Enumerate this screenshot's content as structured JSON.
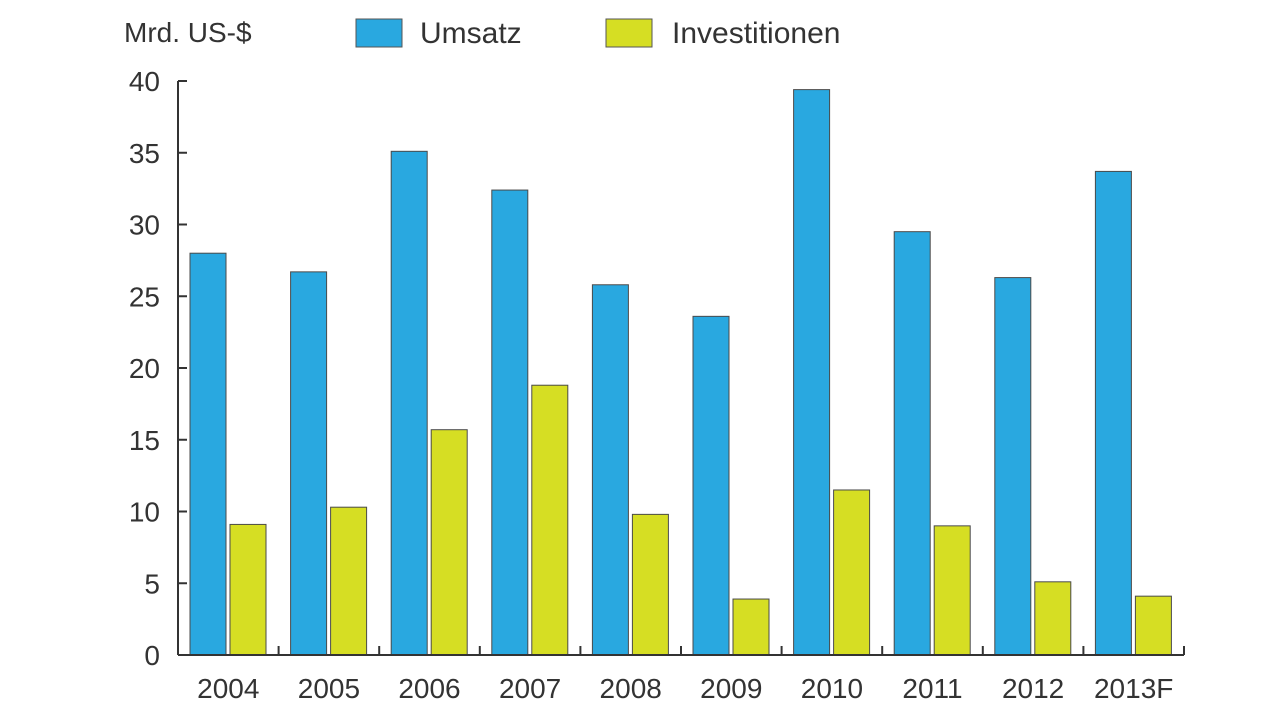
{
  "chart_data": {
    "type": "bar",
    "ylabel": "Mrd. US-$",
    "xlabel": "",
    "title": "",
    "categories": [
      "2004",
      "2005",
      "2006",
      "2007",
      "2008",
      "2009",
      "2010",
      "2011",
      "2012",
      "2013F"
    ],
    "series": [
      {
        "name": "Umsatz",
        "color": "#29a8e0",
        "values": [
          28.0,
          26.7,
          35.1,
          32.4,
          25.8,
          23.6,
          39.4,
          29.5,
          26.3,
          33.7
        ]
      },
      {
        "name": "Investitionen",
        "color": "#d6de23",
        "values": [
          9.1,
          10.3,
          15.7,
          18.8,
          9.8,
          3.9,
          11.5,
          9.0,
          5.1,
          4.1
        ]
      }
    ],
    "ylim": [
      0,
      40
    ],
    "yticks": [
      0,
      5,
      10,
      15,
      20,
      25,
      30,
      35,
      40
    ],
    "ytick_labels": [
      "0",
      "5",
      "10",
      "15",
      "20",
      "25",
      "30",
      "35",
      "40"
    ],
    "grid": false,
    "legend_position": "top"
  }
}
